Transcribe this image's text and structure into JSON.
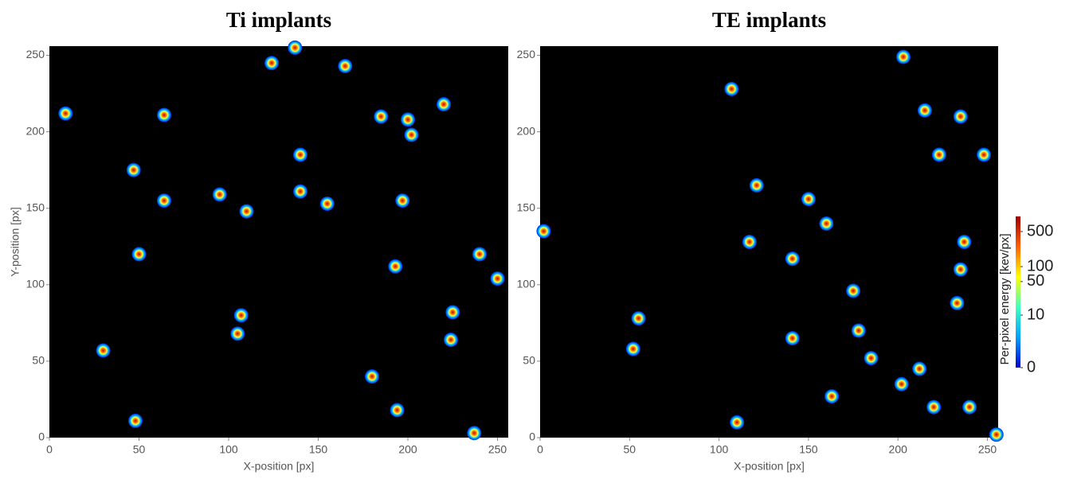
{
  "chart_data": [
    {
      "type": "scatter",
      "title": "Ti implants",
      "x_label": "X-position [px]",
      "y_label": "Y-position [px]",
      "xlim": [
        0,
        256
      ],
      "ylim": [
        0,
        256
      ],
      "xticks": [
        0,
        50,
        100,
        150,
        200,
        250
      ],
      "yticks": [
        0,
        50,
        100,
        150,
        200,
        250
      ],
      "x": [
        9,
        64,
        47,
        64,
        95,
        155,
        197,
        50,
        107,
        30,
        224,
        194,
        237,
        200,
        185,
        140,
        165,
        124,
        137,
        220,
        225,
        240,
        193,
        180,
        105,
        48,
        140,
        110,
        250,
        202
      ],
      "y": [
        212,
        211,
        175,
        155,
        159,
        153,
        155,
        120,
        80,
        57,
        64,
        18,
        3,
        208,
        210,
        185,
        243,
        245,
        255,
        218,
        82,
        120,
        112,
        40,
        68,
        11,
        161,
        148,
        104,
        198
      ]
    },
    {
      "type": "scatter",
      "title": "TE implants",
      "x_label": "X-position [px]",
      "xlim": [
        0,
        256
      ],
      "ylim": [
        0,
        256
      ],
      "xticks": [
        0,
        50,
        100,
        150,
        200,
        250
      ],
      "yticks": [
        0,
        50,
        100,
        150,
        200,
        250
      ],
      "x": [
        107,
        55,
        110,
        117,
        203,
        235,
        237,
        233,
        240,
        160,
        150,
        141,
        141,
        121,
        212,
        223,
        235,
        52,
        163,
        178,
        220,
        248,
        185,
        202,
        175,
        215,
        255,
        2
      ],
      "y": [
        228,
        78,
        10,
        128,
        249,
        210,
        128,
        88,
        20,
        140,
        156,
        117,
        65,
        165,
        45,
        185,
        110,
        58,
        27,
        70,
        20,
        185,
        52,
        35,
        96,
        214,
        2,
        135
      ]
    }
  ],
  "colorbar": {
    "label": "Per-pixel energy [kev/px]",
    "scale": "log1p",
    "lim": [
      0,
      1000
    ],
    "ticks": [
      0,
      10,
      50,
      100,
      500
    ],
    "colors": [
      "#0000d0",
      "#00a0ff",
      "#40ffc0",
      "#ffff00",
      "#ff6000",
      "#a00000"
    ]
  }
}
